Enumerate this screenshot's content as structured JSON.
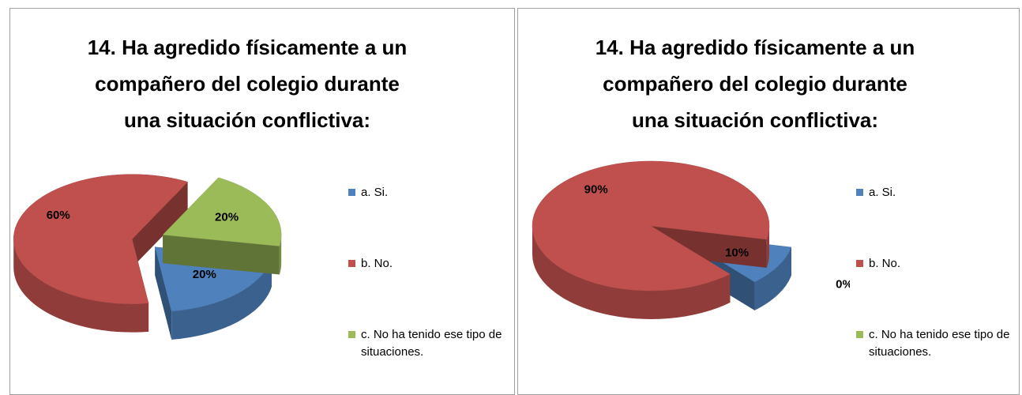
{
  "chart_data": [
    {
      "type": "pie",
      "title": "14. Ha agredido físicamente a un compañero del colegio durante una situación conflictiva:",
      "categories": [
        "a.  Si.",
        "b.  No.",
        "c.  No ha tenido ese tipo de situaciones."
      ],
      "values": [
        20,
        60,
        20
      ],
      "value_labels": [
        "20%",
        "60%",
        "20%"
      ],
      "colors": [
        "#4f81bd",
        "#c0504d",
        "#9bbb59"
      ],
      "legend": "right"
    },
    {
      "type": "pie",
      "title": "14. Ha agredido físicamente a un compañero del colegio durante una situación conflictiva:",
      "categories": [
        "a.  Si.",
        "b.  No.",
        "c.  No ha tenido ese tipo de situaciones."
      ],
      "values": [
        10,
        90,
        0
      ],
      "value_labels": [
        "10%",
        "90%",
        "0%"
      ],
      "colors": [
        "#4f81bd",
        "#c0504d",
        "#9bbb59"
      ],
      "legend": "right"
    }
  ]
}
